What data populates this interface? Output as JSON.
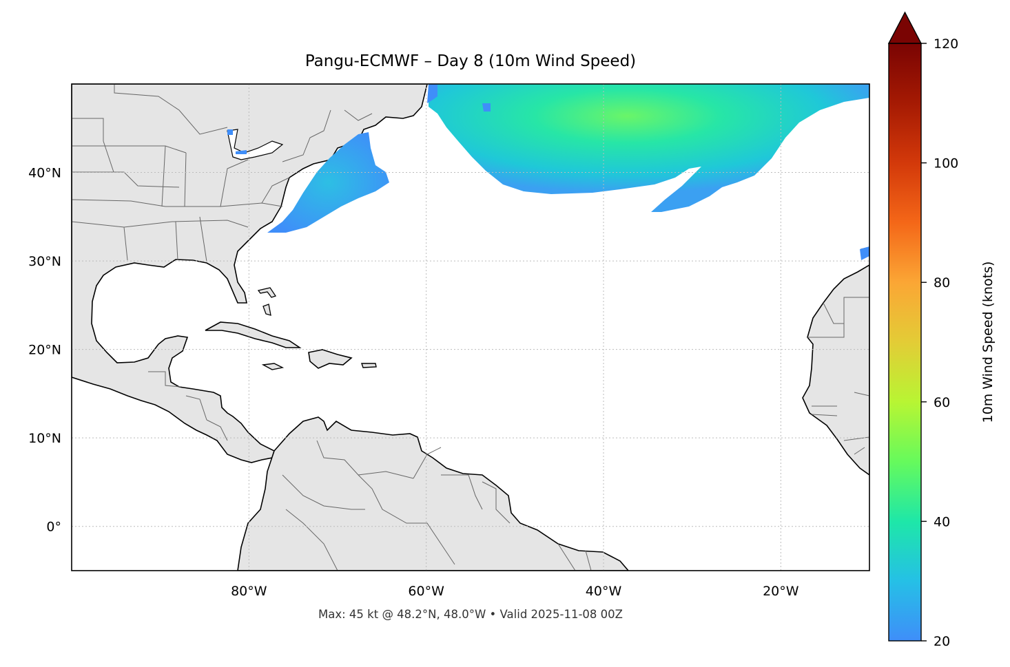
{
  "title": "Pangu-ECMWF – Day 8 (10m Wind Speed)",
  "footer": "Max: 45 kt @ 48.2°N, 48.0°W • Valid 2025-11-08 00Z",
  "map": {
    "extent": {
      "lon_min": -100,
      "lon_max": -10,
      "lat_min": -5,
      "lat_max": 50
    },
    "lon_ticks": [
      {
        "value": -80,
        "label": "80°W"
      },
      {
        "value": -60,
        "label": "60°W"
      },
      {
        "value": -40,
        "label": "40°W"
      },
      {
        "value": -20,
        "label": "20°W"
      }
    ],
    "lat_ticks": [
      {
        "value": 40,
        "label": "40°N"
      },
      {
        "value": 30,
        "label": "30°N"
      },
      {
        "value": 20,
        "label": "20°N"
      },
      {
        "value": 10,
        "label": "10°N"
      },
      {
        "value": 0,
        "label": "0°"
      }
    ],
    "gridlines": true,
    "land_color": "#e5e5e5",
    "ocean_color": "#ffffff",
    "coastline_color": "#000000",
    "border_color": "#666666"
  },
  "colorbar": {
    "label": "10m Wind Speed (knots)",
    "min": 20,
    "max": 120,
    "extend": "max",
    "ticks": [
      20,
      40,
      60,
      80,
      100,
      120
    ],
    "tick_labels": [
      "20",
      "40",
      "60",
      "80",
      "100",
      "120"
    ],
    "colormap": "turbo",
    "stops": [
      "#3f8ef9",
      "#25c0e6",
      "#1ee7a8",
      "#66fa5c",
      "#b8f533",
      "#e3cc36",
      "#fba635",
      "#f46718",
      "#d3390a",
      "#a51a03",
      "#7a0403"
    ]
  },
  "max_marker": {
    "speed_kt": 45,
    "lat": 48.2,
    "lon": -48.0
  }
}
